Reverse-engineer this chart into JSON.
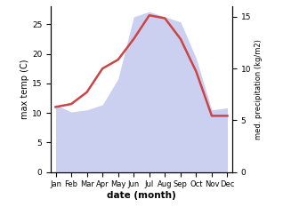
{
  "months": [
    "Jan",
    "Feb",
    "Mar",
    "Apr",
    "May",
    "Jun",
    "Jul",
    "Aug",
    "Sep",
    "Oct",
    "Nov",
    "Dec"
  ],
  "temp": [
    11.0,
    11.5,
    13.5,
    17.5,
    19.0,
    22.5,
    26.5,
    26.0,
    22.5,
    17.0,
    9.5,
    9.5
  ],
  "precip": [
    6.5,
    5.8,
    6.0,
    6.5,
    9.0,
    15.0,
    15.5,
    15.0,
    14.5,
    11.0,
    6.0,
    6.2
  ],
  "temp_ylim": [
    0,
    28
  ],
  "precip_ylim": [
    0,
    16.0
  ],
  "temp_yticks": [
    0,
    5,
    10,
    15,
    20,
    25
  ],
  "precip_yticks": [
    0,
    5,
    10,
    15
  ],
  "ylabel_left": "max temp (C)",
  "ylabel_right": "med. precipitation (kg/m2)",
  "xlabel": "date (month)",
  "line_color": "#cc4444",
  "fill_color": "#b0b8e8",
  "fill_alpha": 0.65,
  "line_width": 1.8
}
